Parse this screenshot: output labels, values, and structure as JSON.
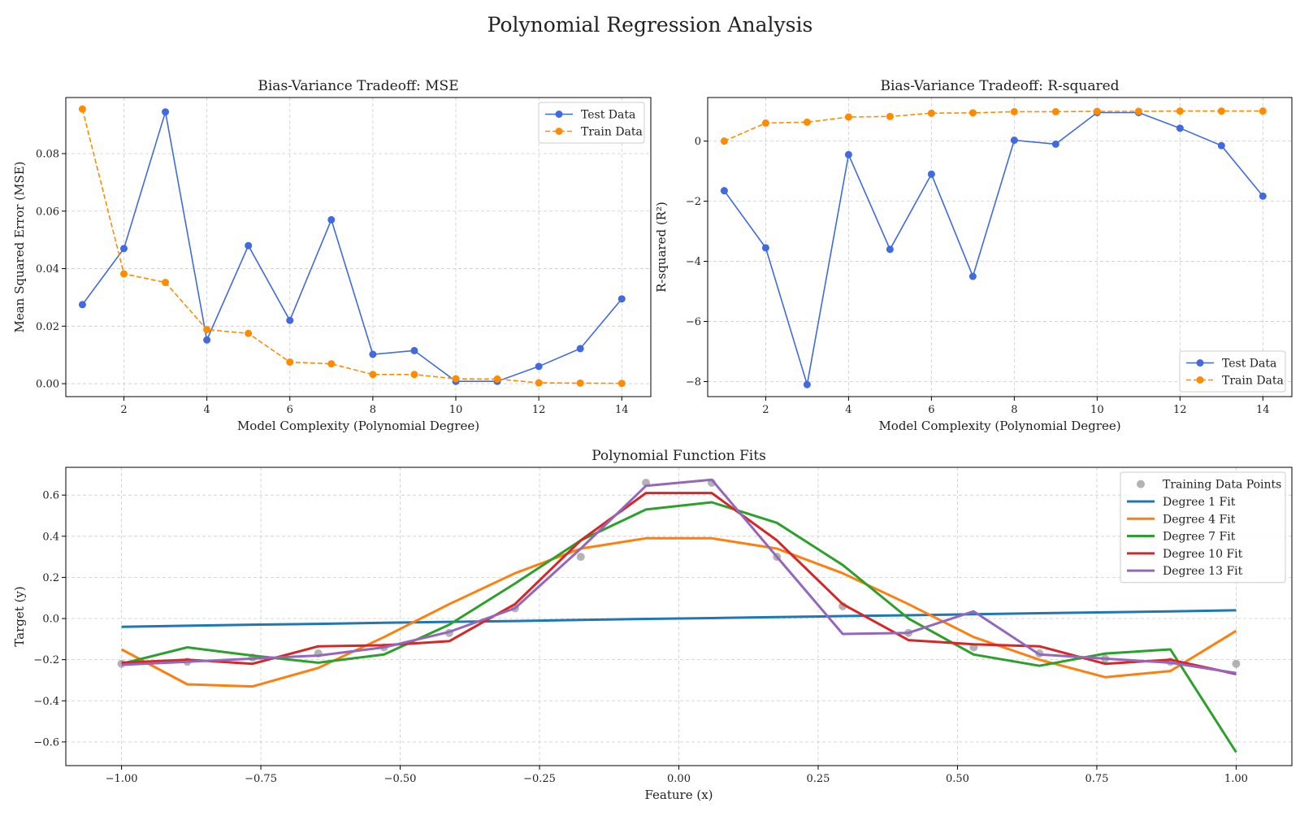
{
  "figure": {
    "title": "Polynomial Regression Analysis"
  },
  "chart_data": [
    {
      "type": "line",
      "title": "Bias-Variance Tradeoff: MSE",
      "xlabel": "Model Complexity (Polynomial Degree)",
      "ylabel": "Mean Squared Error (MSE)",
      "xlim": [
        0.6,
        14.7
      ],
      "ylim": [
        -0.0045,
        0.0995
      ],
      "xticks": [
        2,
        4,
        6,
        8,
        10,
        12,
        14
      ],
      "xtick_labels": [
        "2",
        "4",
        "6",
        "8",
        "10",
        "12",
        "14"
      ],
      "yticks": [
        0,
        0.02,
        0.04,
        0.06,
        0.08
      ],
      "ytick_labels": [
        "0.00",
        "0.02",
        "0.04",
        "0.06",
        "0.08"
      ],
      "grid": true,
      "legend_position": "upper right",
      "series": [
        {
          "name": "Test Data",
          "color": "#4169e1",
          "style": "solid",
          "marker": "circle",
          "x": [
            1,
            2,
            3,
            4,
            5,
            6,
            7,
            8,
            9,
            10,
            11,
            12,
            13,
            14
          ],
          "y": [
            0.0275,
            0.047,
            0.0945,
            0.0152,
            0.048,
            0.022,
            0.057,
            0.0102,
            0.0115,
            0.0008,
            0.0008,
            0.006,
            0.0122,
            0.0295
          ]
        },
        {
          "name": "Train Data",
          "color": "#ff8c00",
          "style": "dashed",
          "marker": "circle",
          "x": [
            1,
            2,
            3,
            4,
            5,
            6,
            7,
            8,
            9,
            10,
            11,
            12,
            13,
            14
          ],
          "y": [
            0.0955,
            0.0382,
            0.0352,
            0.0188,
            0.0175,
            0.0075,
            0.0069,
            0.0032,
            0.0032,
            0.0017,
            0.0016,
            0.0003,
            0.0002,
            0.0001
          ]
        }
      ]
    },
    {
      "type": "line",
      "title": "Bias-Variance Tradeoff: R-squared",
      "xlabel": "Model Complexity (Polynomial Degree)",
      "ylabel": "R-squared (R²)",
      "xlim": [
        0.6,
        14.7
      ],
      "ylim": [
        -8.5,
        1.45
      ],
      "xticks": [
        2,
        4,
        6,
        8,
        10,
        12,
        14
      ],
      "xtick_labels": [
        "2",
        "4",
        "6",
        "8",
        "10",
        "12",
        "14"
      ],
      "yticks": [
        -8,
        -6,
        -4,
        -2,
        0
      ],
      "ytick_labels": [
        "−8",
        "−6",
        "−4",
        "−2",
        "0"
      ],
      "grid": true,
      "legend_position": "lower right",
      "series": [
        {
          "name": "Test Data",
          "color": "#4169e1",
          "style": "solid",
          "marker": "circle",
          "x": [
            1,
            2,
            3,
            4,
            5,
            6,
            7,
            8,
            9,
            10,
            11,
            12,
            13,
            14
          ],
          "y": [
            -1.65,
            -3.55,
            -8.1,
            -0.45,
            -3.6,
            -1.1,
            -4.5,
            0.03,
            -0.1,
            0.95,
            0.95,
            0.43,
            -0.15,
            -1.83
          ]
        },
        {
          "name": "Train Data",
          "color": "#ff8c00",
          "style": "dashed",
          "marker": "circle",
          "x": [
            1,
            2,
            3,
            4,
            5,
            6,
            7,
            8,
            9,
            10,
            11,
            12,
            13,
            14
          ],
          "y": [
            0.0,
            0.6,
            0.63,
            0.8,
            0.82,
            0.93,
            0.94,
            0.98,
            0.98,
            0.99,
            0.99,
            1.0,
            1.0,
            1.0
          ]
        }
      ]
    },
    {
      "type": "line",
      "title": "Polynomial Function Fits",
      "xlabel": "Feature (x)",
      "ylabel": "Target (y)",
      "xlim": [
        -1.1,
        1.1
      ],
      "ylim": [
        -0.715,
        0.735
      ],
      "xticks": [
        -1,
        -0.75,
        -0.5,
        -0.25,
        0,
        0.25,
        0.5,
        0.75,
        1
      ],
      "xtick_labels": [
        "−1.00",
        "−0.75",
        "−0.50",
        "−0.25",
        "0.00",
        "0.25",
        "0.50",
        "0.75",
        "1.00"
      ],
      "yticks": [
        -0.6,
        -0.4,
        -0.2,
        0,
        0.2,
        0.4,
        0.6
      ],
      "ytick_labels": [
        "−0.6",
        "−0.4",
        "−0.2",
        "0.0",
        "0.2",
        "0.4",
        "0.6"
      ],
      "grid": true,
      "legend_position": "upper right",
      "scatter": {
        "name": "Training Data Points",
        "color": "#999999",
        "x": [
          -1.0,
          -0.882,
          -0.765,
          -0.647,
          -0.529,
          -0.412,
          -0.294,
          -0.176,
          -0.059,
          0.059,
          0.176,
          0.294,
          0.412,
          0.529,
          0.647,
          0.765,
          0.882,
          1.0
        ],
        "y": [
          -0.22,
          -0.21,
          -0.19,
          -0.17,
          -0.14,
          -0.07,
          0.05,
          0.3,
          0.66,
          0.66,
          0.3,
          0.06,
          -0.07,
          -0.14,
          -0.17,
          -0.195,
          -0.21,
          -0.22
        ]
      },
      "x": [
        -1.0,
        -0.882,
        -0.765,
        -0.647,
        -0.529,
        -0.412,
        -0.294,
        -0.176,
        -0.059,
        0.059,
        0.176,
        0.294,
        0.412,
        0.529,
        0.647,
        0.765,
        0.882,
        1.0
      ],
      "series": [
        {
          "name": "Degree 1 Fit",
          "color": "#1f77b4",
          "y": [
            -0.04,
            -0.035,
            -0.03,
            -0.026,
            -0.021,
            -0.016,
            -0.012,
            -0.007,
            -0.002,
            0.002,
            0.007,
            0.012,
            0.016,
            0.021,
            0.026,
            0.03,
            0.035,
            0.04
          ]
        },
        {
          "name": "Degree 4 Fit",
          "color": "#ff7f0e",
          "y": [
            -0.15,
            -0.32,
            -0.33,
            -0.24,
            -0.09,
            0.07,
            0.22,
            0.34,
            0.39,
            0.39,
            0.34,
            0.22,
            0.07,
            -0.09,
            -0.2,
            -0.285,
            -0.255,
            -0.06
          ]
        },
        {
          "name": "Degree 7 Fit",
          "color": "#2ca02c",
          "y": [
            -0.22,
            -0.14,
            -0.18,
            -0.215,
            -0.175,
            -0.03,
            0.17,
            0.38,
            0.53,
            0.565,
            0.465,
            0.26,
            0.0,
            -0.175,
            -0.23,
            -0.17,
            -0.15,
            -0.65
          ]
        },
        {
          "name": "Degree 10 Fit",
          "color": "#d62728",
          "y": [
            -0.215,
            -0.2,
            -0.22,
            -0.135,
            -0.13,
            -0.11,
            0.07,
            0.38,
            0.61,
            0.61,
            0.38,
            0.07,
            -0.105,
            -0.125,
            -0.135,
            -0.22,
            -0.2,
            -0.27
          ]
        },
        {
          "name": "Degree 13 Fit",
          "color": "#9467bd",
          "y": [
            -0.225,
            -0.21,
            -0.195,
            -0.18,
            -0.14,
            -0.065,
            0.05,
            0.34,
            0.645,
            0.675,
            0.3,
            -0.075,
            -0.07,
            0.035,
            -0.175,
            -0.195,
            -0.215,
            -0.265
          ]
        }
      ]
    }
  ]
}
